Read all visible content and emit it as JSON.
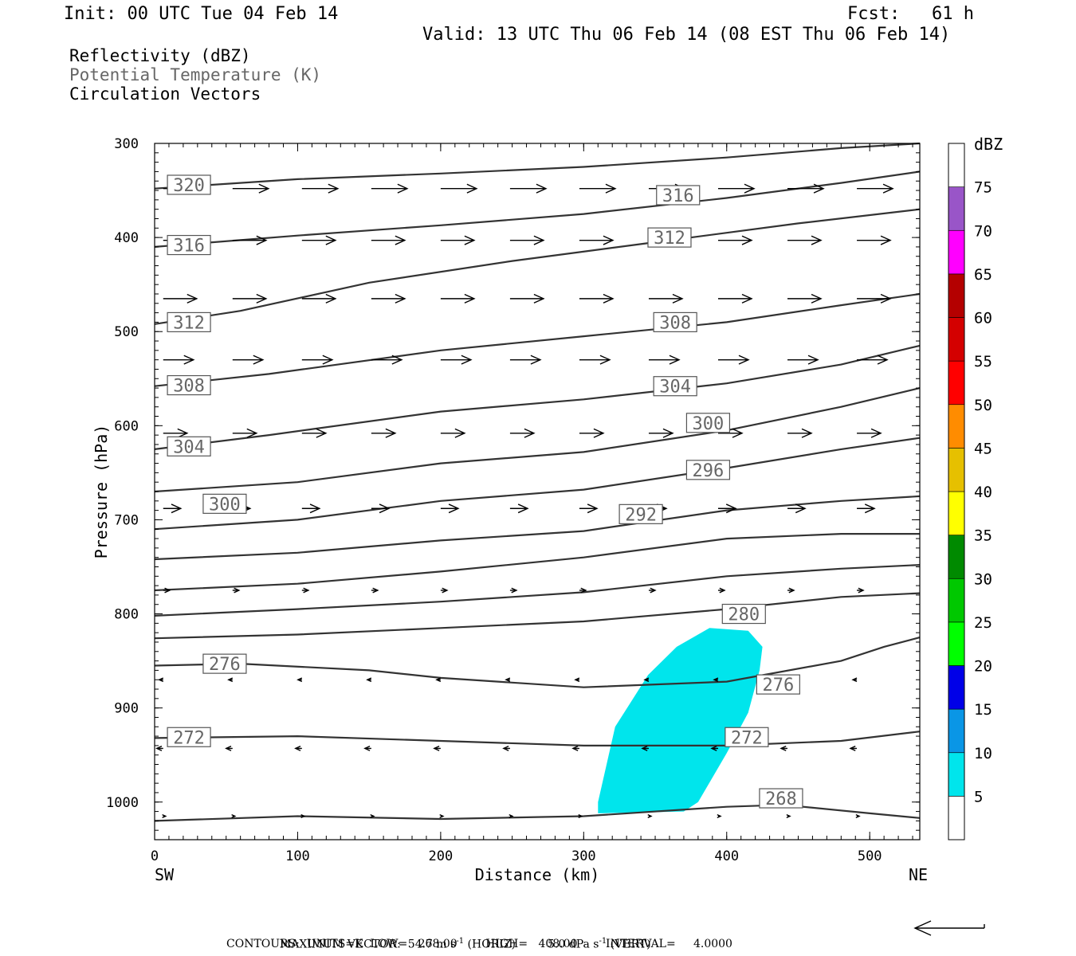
{
  "header": {
    "init": "Init: 00 UTC Tue 04 Feb 14",
    "fcst": "Fcst:   61 h",
    "valid": "Valid: 13 UTC Thu 06 Feb 14 (08 EST Thu 06 Feb 14)"
  },
  "fields": {
    "reflectivity": "Reflectivity (dBZ)",
    "theta": "Potential Temperature (K)",
    "vectors": "Circulation Vectors"
  },
  "colors": {
    "theta_label": "#666666",
    "contour": "#333333",
    "reflectivity_fill": "#00e5ec"
  },
  "chart_data": {
    "type": "cross-section",
    "xlabel": "Distance (km)",
    "ylabel": "Pressure (hPa)",
    "xlim": [
      0,
      535
    ],
    "ylim": [
      1040,
      300
    ],
    "x_ticks": [
      0,
      100,
      200,
      300,
      400,
      500
    ],
    "y_ticks": [
      300,
      400,
      500,
      600,
      700,
      800,
      900,
      1000
    ],
    "x_end_labels": {
      "left": "SW",
      "right": "NE"
    },
    "theta_contours": [
      {
        "value": 320,
        "label": "320",
        "label_at": [
          24,
          344
        ],
        "points": [
          [
            0,
            348
          ],
          [
            100,
            338
          ],
          [
            200,
            332
          ],
          [
            300,
            325
          ],
          [
            400,
            315
          ],
          [
            480,
            305
          ],
          [
            535,
            300
          ]
        ]
      },
      {
        "value": 316,
        "label": "316",
        "label_at": [
          24,
          408
        ],
        "label2": "316",
        "label2_at": [
          366,
          355
        ],
        "points": [
          [
            0,
            410
          ],
          [
            100,
            398
          ],
          [
            200,
            387
          ],
          [
            300,
            375
          ],
          [
            400,
            358
          ],
          [
            480,
            342
          ],
          [
            535,
            330
          ]
        ]
      },
      {
        "value": 312,
        "label": "312",
        "label_at": [
          24,
          490
        ],
        "label2": "312",
        "label2_at": [
          360,
          400
        ],
        "points": [
          [
            0,
            492
          ],
          [
            60,
            478
          ],
          [
            150,
            448
          ],
          [
            250,
            425
          ],
          [
            350,
            405
          ],
          [
            450,
            385
          ],
          [
            535,
            370
          ]
        ]
      },
      {
        "value": 308,
        "label": "308",
        "label_at": [
          24,
          557
        ],
        "label2": "308",
        "label2_at": [
          364,
          490
        ],
        "points": [
          [
            0,
            558
          ],
          [
            80,
            545
          ],
          [
            200,
            520
          ],
          [
            300,
            505
          ],
          [
            400,
            490
          ],
          [
            480,
            472
          ],
          [
            535,
            460
          ]
        ]
      },
      {
        "value": 304,
        "label": "304",
        "label_at": [
          24,
          622
        ],
        "label2": "304",
        "label2_at": [
          364,
          558
        ],
        "points": [
          [
            0,
            625
          ],
          [
            80,
            610
          ],
          [
            200,
            585
          ],
          [
            300,
            572
          ],
          [
            400,
            555
          ],
          [
            480,
            535
          ],
          [
            535,
            515
          ]
        ]
      },
      {
        "value": 300,
        "label": "300",
        "label_at": [
          49,
          683
        ],
        "label2": "300",
        "label2_at": [
          387,
          597
        ],
        "points": [
          [
            0,
            670
          ],
          [
            100,
            660
          ],
          [
            200,
            640
          ],
          [
            300,
            628
          ],
          [
            400,
            605
          ],
          [
            480,
            580
          ],
          [
            535,
            560
          ]
        ]
      },
      {
        "value": 296,
        "label": "296",
        "label_at": [
          387,
          647
        ],
        "points": [
          [
            0,
            710
          ],
          [
            100,
            700
          ],
          [
            200,
            680
          ],
          [
            300,
            668
          ],
          [
            400,
            645
          ],
          [
            480,
            625
          ],
          [
            535,
            613
          ]
        ]
      },
      {
        "value": 292,
        "label": "292",
        "label_at": [
          340,
          694
        ],
        "points": [
          [
            0,
            742
          ],
          [
            100,
            735
          ],
          [
            200,
            722
          ],
          [
            300,
            712
          ],
          [
            400,
            690
          ],
          [
            480,
            680
          ],
          [
            535,
            675
          ]
        ]
      },
      {
        "value": 288,
        "label": "",
        "points": [
          [
            0,
            775
          ],
          [
            100,
            768
          ],
          [
            200,
            755
          ],
          [
            300,
            740
          ],
          [
            400,
            720
          ],
          [
            480,
            715
          ],
          [
            535,
            715
          ]
        ]
      },
      {
        "value": 284,
        "label": "",
        "points": [
          [
            0,
            802
          ],
          [
            100,
            795
          ],
          [
            200,
            787
          ],
          [
            300,
            777
          ],
          [
            400,
            760
          ],
          [
            480,
            752
          ],
          [
            535,
            748
          ]
        ]
      },
      {
        "value": 280,
        "label": "280",
        "label_at": [
          412,
          800
        ],
        "points": [
          [
            0,
            826
          ],
          [
            100,
            822
          ],
          [
            200,
            815
          ],
          [
            300,
            808
          ],
          [
            400,
            795
          ],
          [
            480,
            782
          ],
          [
            535,
            778
          ]
        ]
      },
      {
        "value": 276,
        "label": "276",
        "label_at": [
          49,
          853
        ],
        "label2": "276",
        "label2_at": [
          436,
          875
        ],
        "points": [
          [
            0,
            855
          ],
          [
            60,
            853
          ],
          [
            150,
            860
          ],
          [
            200,
            868
          ],
          [
            300,
            878
          ],
          [
            400,
            872
          ],
          [
            480,
            850
          ],
          [
            510,
            835
          ],
          [
            535,
            825
          ]
        ]
      },
      {
        "value": 272,
        "label": "272",
        "label_at": [
          24,
          931
        ],
        "label2": "272",
        "label2_at": [
          414,
          931
        ],
        "points": [
          [
            0,
            932
          ],
          [
            100,
            930
          ],
          [
            200,
            935
          ],
          [
            300,
            940
          ],
          [
            400,
            940
          ],
          [
            480,
            935
          ],
          [
            535,
            925
          ]
        ]
      },
      {
        "value": 268,
        "label": "268",
        "label_at": [
          438,
          996
        ],
        "points": [
          [
            0,
            1020
          ],
          [
            100,
            1015
          ],
          [
            200,
            1018
          ],
          [
            300,
            1015
          ],
          [
            400,
            1005
          ],
          [
            440,
            1003
          ],
          [
            500,
            1012
          ],
          [
            535,
            1017
          ]
        ]
      }
    ],
    "reflectivity": {
      "value_dbz": 5,
      "polygon": [
        [
          310,
          1000
        ],
        [
          322,
          920
        ],
        [
          345,
          865
        ],
        [
          365,
          835
        ],
        [
          388,
          815
        ],
        [
          415,
          818
        ],
        [
          425,
          835
        ],
        [
          423,
          860
        ],
        [
          415,
          905
        ],
        [
          400,
          948
        ],
        [
          380,
          1000
        ],
        [
          370,
          1010
        ],
        [
          310,
          1012
        ]
      ]
    },
    "colorbar": {
      "unit": "dBZ",
      "levels": [
        5,
        10,
        15,
        20,
        25,
        30,
        35,
        40,
        45,
        50,
        55,
        60,
        65,
        70,
        75
      ],
      "colors": [
        "#ffffff",
        "#00e5ec",
        "#0a96e6",
        "#0000e8",
        "#00ff00",
        "#00c800",
        "#008a00",
        "#ffff00",
        "#e6c000",
        "#ff8c00",
        "#ff0000",
        "#d40000",
        "#b40000",
        "#ff00ff",
        "#9955c8",
        "#ffffff"
      ]
    },
    "vectors": [
      {
        "p": 348,
        "u_len": 45
      },
      {
        "p": 403,
        "u_len": 42
      },
      {
        "p": 465,
        "u_len": 42
      },
      {
        "p": 530,
        "u_len": 38
      },
      {
        "p": 608,
        "u_len": 30
      },
      {
        "p": 688,
        "u_len": 22
      },
      {
        "p": 775,
        "u_len": 8
      },
      {
        "p": 870,
        "u_len": -5
      },
      {
        "p": 943,
        "u_len": -8
      },
      {
        "p": 1015,
        "u_len": 3
      }
    ]
  },
  "footer": {
    "line1_left": "MAXIMUM VECTOR:  54.7 m s",
    "line1_mid": "(HORIZ)",
    "line1_right": "5.0 dPa s",
    "line1_right2": "(VERT)",
    "sup": "-1",
    "line2": "CONTOURS:  UNITS=K  LOW=   268.00        HIGH=   408.00        INTERVAL=     4.0000"
  }
}
